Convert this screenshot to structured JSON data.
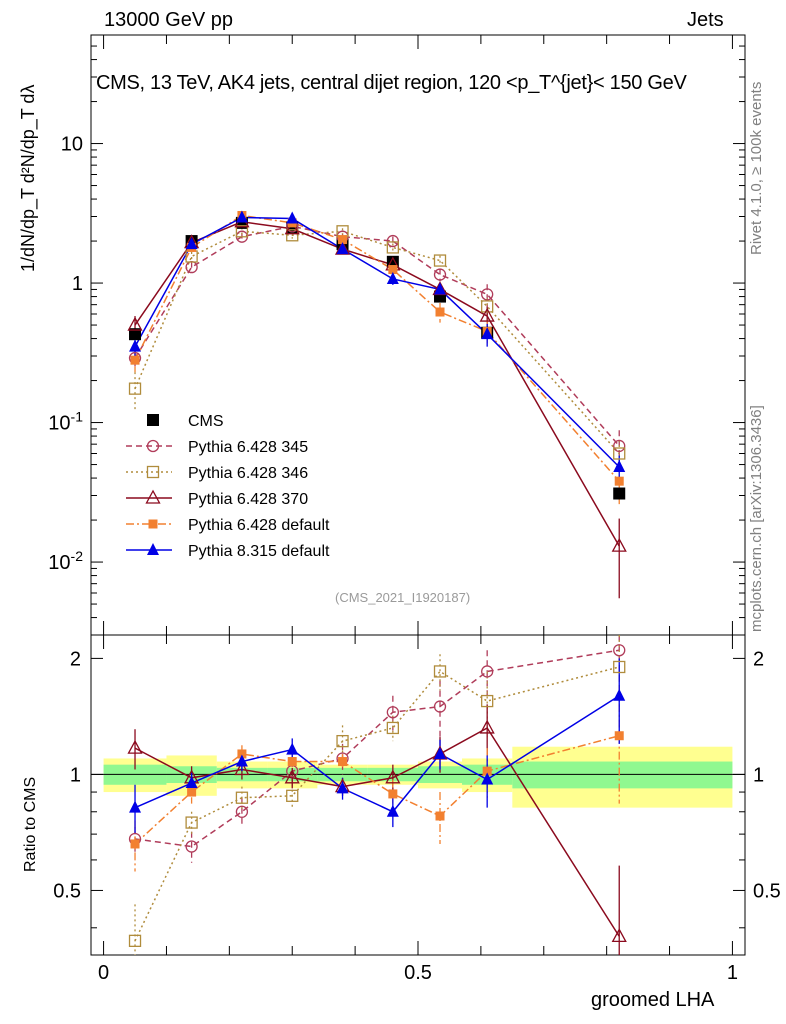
{
  "header": {
    "energy_label": "13000 GeV pp",
    "category_label": "Jets",
    "title": "CMS, 13 TeV, AK4 jets, central dijet region, 120 <p_T^{jet}< 150 GeV",
    "watermark": "(CMS_2021_I1920187)",
    "rivet_label": "Rivet 4.1.0, ≥ 100k events",
    "mcplots_label": "mcplots.cern.ch [arXiv:1306.3436]"
  },
  "colors": {
    "cms": "#000000",
    "p345": "#b03c5a",
    "p346": "#b08c3c",
    "p370": "#8b0a1e",
    "p6def": "#f28030",
    "p8def": "#0000e6",
    "band_inner": "#90f890",
    "band_outer": "#ffff90"
  },
  "chart_data": [
    {
      "type": "line",
      "name": "main",
      "title": "CMS, 13 TeV, AK4 jets, central dijet region, 120 <p_T^{jet}< 150 GeV",
      "xlabel": "groomed LHA",
      "ylabel": "1/dN/dp_T  d²N/dp_T dλ",
      "xlim": [
        -0.02,
        1.02
      ],
      "ylim": [
        0.003,
        60
      ],
      "yscale": "log",
      "y_tick_labels": [
        "10^{-2}",
        "10^{-1}",
        "1",
        "10"
      ],
      "x": [
        0.05,
        0.14,
        0.22,
        0.3,
        0.38,
        0.46,
        0.535,
        0.61,
        0.82
      ],
      "bins": [
        0.0,
        0.1,
        0.18,
        0.26,
        0.34,
        0.42,
        0.5,
        0.57,
        0.65,
        1.0
      ],
      "series": [
        {
          "name": "CMS",
          "key": "cms",
          "marker": "square",
          "line": "none",
          "values": [
            0.43,
            2.0,
            2.7,
            2.5,
            1.9,
            1.42,
            0.8,
            0.44,
            0.031
          ]
        },
        {
          "name": "Pythia 6.428 345",
          "key": "p345",
          "marker": "circle-open",
          "line": "dashed",
          "values": [
            0.29,
            1.3,
            2.15,
            2.55,
            2.15,
            2.0,
            1.15,
            0.83,
            0.068
          ],
          "errors": [
            0.04,
            0.12,
            0.15,
            0.15,
            0.12,
            0.15,
            0.12,
            0.15,
            0.02
          ]
        },
        {
          "name": "Pythia 6.428 346",
          "key": "p346",
          "marker": "square-open",
          "line": "dotted",
          "values": [
            0.175,
            1.55,
            2.35,
            2.2,
            2.35,
            1.8,
            1.45,
            0.68,
            0.06
          ],
          "errors": [
            0.055,
            0.12,
            0.15,
            0.12,
            0.12,
            0.12,
            0.12,
            0.1,
            0.015
          ]
        },
        {
          "name": "Pythia 6.428 370",
          "key": "p370",
          "marker": "triangle-open",
          "line": "solid",
          "values": [
            0.5,
            1.95,
            2.75,
            2.45,
            1.75,
            1.35,
            0.9,
            0.58,
            0.013
          ],
          "errors": [
            0.08,
            0.12,
            0.15,
            0.12,
            0.12,
            0.12,
            0.08,
            0.1,
            0.0075
          ]
        },
        {
          "name": "Pythia 6.428 default",
          "key": "p6def",
          "marker": "square-filled",
          "line": "dashdot",
          "values": [
            0.28,
            1.8,
            3.05,
            2.7,
            2.05,
            1.25,
            0.62,
            0.45,
            0.038
          ],
          "errors": [
            0.05,
            0.12,
            0.15,
            0.12,
            0.12,
            0.1,
            0.1,
            0.08,
            0.012
          ]
        },
        {
          "name": "Pythia 8.315 default",
          "key": "p8def",
          "marker": "triangle-filled",
          "line": "solid",
          "values": [
            0.35,
            1.9,
            2.95,
            2.9,
            1.75,
            1.07,
            0.9,
            0.43,
            0.048
          ],
          "errors": [
            0.05,
            0.12,
            0.15,
            0.15,
            0.1,
            0.1,
            0.08,
            0.08,
            0.01
          ]
        }
      ]
    },
    {
      "type": "line",
      "name": "ratio",
      "ylabel": "Ratio to CMS",
      "xlabel": "groomed LHA",
      "xlim": [
        -0.02,
        1.02
      ],
      "ylim": [
        0.34,
        2.3
      ],
      "yscale": "log",
      "x_tick_labels": [
        "0",
        "0.5",
        "1"
      ],
      "y_tick_labels": [
        "0.5",
        "1",
        "2"
      ],
      "x": [
        0.05,
        0.14,
        0.22,
        0.3,
        0.38,
        0.46,
        0.535,
        0.61,
        0.82
      ],
      "bins": [
        0.0,
        0.1,
        0.18,
        0.26,
        0.34,
        0.42,
        0.5,
        0.57,
        0.65,
        1.0
      ],
      "band_inner": [
        0.06,
        0.05,
        0.04,
        0.04,
        0.04,
        0.04,
        0.05,
        0.06,
        0.08
      ],
      "band_outer": [
        0.1,
        0.12,
        0.08,
        0.08,
        0.06,
        0.06,
        0.08,
        0.1,
        0.18
      ],
      "series": [
        {
          "key": "p345",
          "values": [
            0.68,
            0.65,
            0.8,
            1.02,
            1.1,
            1.45,
            1.5,
            1.85,
            2.1
          ],
          "errors": [
            0.05,
            0.06,
            0.07,
            0.08,
            0.1,
            0.15,
            0.25,
            0.25,
            0.6
          ]
        },
        {
          "key": "p346",
          "values": [
            0.37,
            0.75,
            0.87,
            0.88,
            1.22,
            1.32,
            1.85,
            1.55,
            1.9
          ],
          "errors": [
            0.09,
            0.05,
            0.06,
            0.06,
            0.12,
            0.1,
            0.2,
            0.3,
            0.6
          ]
        },
        {
          "key": "p370",
          "values": [
            1.17,
            0.98,
            1.03,
            0.98,
            0.93,
            0.98,
            1.13,
            1.32,
            0.38
          ],
          "errors": [
            0.14,
            0.07,
            0.06,
            0.06,
            0.05,
            0.08,
            0.12,
            0.2,
            0.2
          ]
        },
        {
          "key": "p6def",
          "values": [
            0.66,
            0.9,
            1.13,
            1.08,
            1.08,
            0.89,
            0.78,
            1.02,
            1.26
          ],
          "errors": [
            0.1,
            0.06,
            0.06,
            0.05,
            0.05,
            0.08,
            0.12,
            0.15,
            0.42
          ]
        },
        {
          "key": "p8def",
          "values": [
            0.82,
            0.95,
            1.08,
            1.16,
            0.92,
            0.8,
            1.13,
            0.97,
            1.6
          ],
          "errors": [
            0.12,
            0.06,
            0.06,
            0.08,
            0.06,
            0.07,
            0.1,
            0.15,
            0.4
          ]
        }
      ]
    }
  ]
}
